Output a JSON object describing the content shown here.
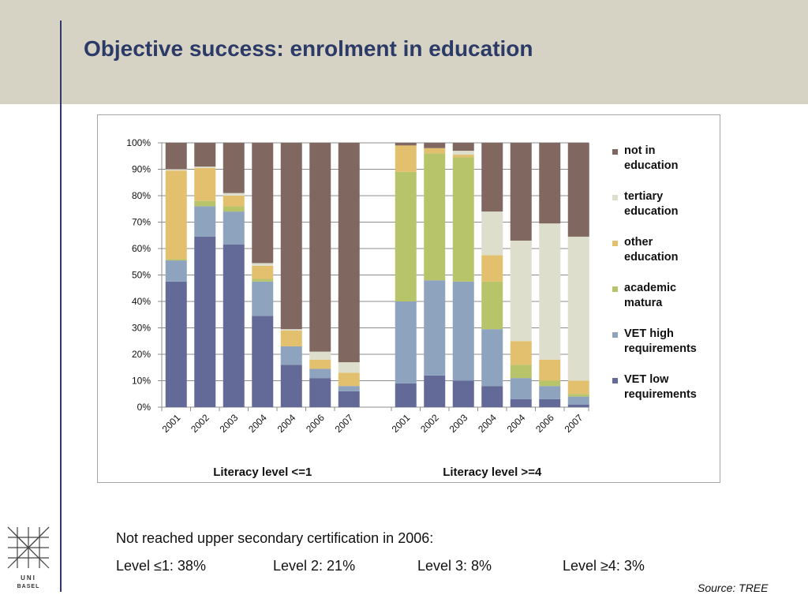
{
  "slide": {
    "title": "Objective success: enrolment in education",
    "note": "Not reached upper secondary certification in 2006:",
    "levels": [
      "Level ≤1: 38%",
      "Level 2: 21%",
      "Level 3: 8%",
      "Level ≥4: 3%"
    ],
    "source": "Source: TREE",
    "logo_text": [
      "UNI",
      "BASEL"
    ]
  },
  "colors": {
    "header_band": "#d6d2c4",
    "title": "#2b3a67",
    "accent_line": "#2e3a6e"
  },
  "chart_data": {
    "type": "bar",
    "stacked": true,
    "percent": true,
    "ylim": [
      0,
      100
    ],
    "yticks": [
      "0%",
      "10%",
      "20%",
      "30%",
      "40%",
      "50%",
      "60%",
      "70%",
      "80%",
      "90%",
      "100%"
    ],
    "grid": true,
    "legend_position": "right",
    "groups": [
      {
        "label": "Literacy level <=1",
        "categories": [
          "2001",
          "2002",
          "2003",
          "2004",
          "2004",
          "2006",
          "2007"
        ],
        "values": {
          "VET low requirements": [
            47.5,
            64.5,
            61.5,
            34.5,
            16,
            11,
            6
          ],
          "VET high requirements": [
            8,
            11.5,
            12.5,
            13,
            7,
            3.5,
            2
          ],
          "academic matura": [
            0.5,
            2,
            2,
            1,
            0,
            0,
            0
          ],
          "other education": [
            33.5,
            12.5,
            4,
            5,
            6,
            3.5,
            5
          ],
          "tertiary education": [
            0.5,
            0.5,
            1,
            1,
            0.5,
            3,
            4
          ],
          "not in education": [
            10,
            9,
            19,
            45.5,
            70.5,
            79,
            83
          ]
        }
      },
      {
        "label": "Literacy level >=4",
        "categories": [
          "2001",
          "2002",
          "2003",
          "2004",
          "2004",
          "2006",
          "2007"
        ],
        "values": {
          "VET low requirements": [
            9,
            12,
            10,
            8,
            3,
            3,
            1
          ],
          "VET high requirements": [
            31,
            36,
            37.5,
            21.5,
            8,
            5,
            3
          ],
          "academic matura": [
            49,
            48,
            47,
            18,
            5,
            2,
            1
          ],
          "other education": [
            10,
            2,
            1,
            10,
            9,
            8,
            5
          ],
          "tertiary education": [
            0,
            0,
            1.5,
            16.5,
            38,
            51.5,
            54.5
          ],
          "not in education": [
            1,
            2,
            3,
            26,
            37,
            30.5,
            35.5
          ]
        }
      }
    ],
    "series": [
      {
        "name": "VET low requirements",
        "color": "#636a97"
      },
      {
        "name": "VET high requirements",
        "color": "#8ea3bd"
      },
      {
        "name": "academic matura",
        "color": "#b8c46a"
      },
      {
        "name": "other education",
        "color": "#e2c06e"
      },
      {
        "name": "tertiary education",
        "color": "#dedecc"
      },
      {
        "name": "not in education",
        "color": "#806860"
      }
    ],
    "legend": [
      {
        "line1": "not in",
        "line2": "education",
        "color": "#806860"
      },
      {
        "line1": "tertiary",
        "line2": "education",
        "color": "#dedecc"
      },
      {
        "line1": "other",
        "line2": "education",
        "color": "#e2c06e"
      },
      {
        "line1": "academic",
        "line2": "matura",
        "color": "#b8c46a"
      },
      {
        "line1": "VET high",
        "line2": "requirements",
        "color": "#8ea3bd"
      },
      {
        "line1": "VET low",
        "line2": "requirements",
        "color": "#636a97"
      }
    ]
  }
}
